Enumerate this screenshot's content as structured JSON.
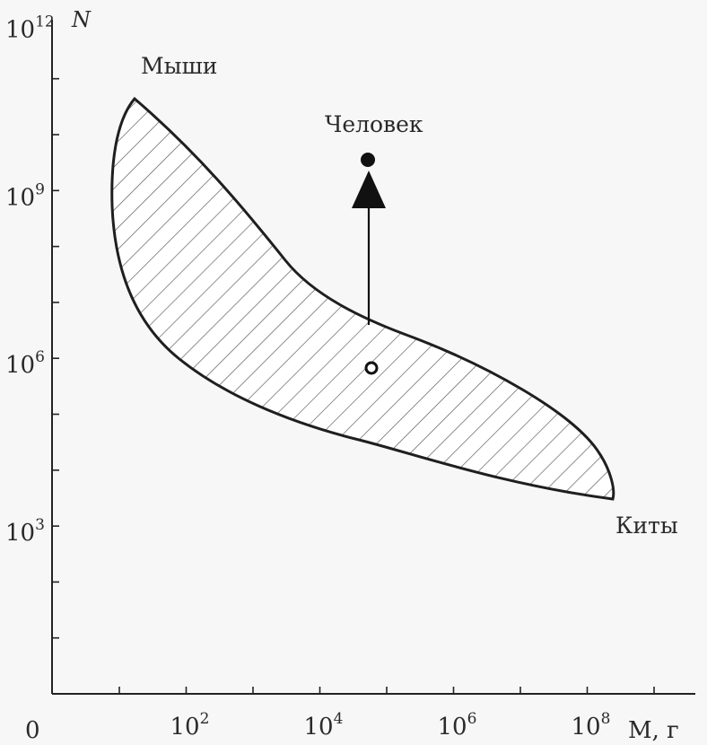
{
  "chart_data": {
    "type": "area",
    "x_scale": "log",
    "y_scale": "log",
    "xlabel": "M, г",
    "ylabel": "N",
    "x_origin_label": "0",
    "x_ticks": [
      {
        "value": 100,
        "base": "10",
        "exp": "2"
      },
      {
        "value": 10000,
        "base": "10",
        "exp": "4"
      },
      {
        "value": 1000000,
        "base": "10",
        "exp": "6"
      },
      {
        "value": 100000000,
        "base": "10",
        "exp": "8"
      }
    ],
    "y_ticks": [
      {
        "value": 1000,
        "base": "10",
        "exp": "3"
      },
      {
        "value": 1000000,
        "base": "10",
        "exp": "6"
      },
      {
        "value": 1000000000,
        "base": "10",
        "exp": "9"
      },
      {
        "value": 1000000000000,
        "base": "10",
        "exp": "12"
      }
    ],
    "region": {
      "description_points_upper": [
        [
          13,
          25000000000
        ],
        [
          40,
          4000000000
        ],
        [
          1000,
          60000000
        ],
        [
          100000,
          5000000
        ],
        [
          10000000,
          200000
        ],
        [
          200000000,
          5000
        ]
      ],
      "description_points_lower": [
        [
          6,
          2000000000
        ],
        [
          10,
          80000000
        ],
        [
          100,
          3000000
        ],
        [
          10000,
          100000
        ],
        [
          1000000,
          20000
        ],
        [
          200000000,
          3000
        ]
      ]
    },
    "annotations": [
      {
        "label": "Мыши",
        "x": 13,
        "y": 25000000000
      },
      {
        "label": "Человек",
        "x": 50000,
        "y": 5000000000
      },
      {
        "label": "Киты",
        "x": 200000000,
        "y": 3000
      }
    ],
    "points": [
      {
        "name": "human-point",
        "x": 50000,
        "y": 5000000000,
        "style": "filled"
      },
      {
        "name": "expected-point",
        "x": 50000,
        "y": 1000000,
        "style": "open"
      }
    ],
    "arrow": {
      "from": [
        50000,
        5000000
      ],
      "to": [
        50000,
        1000000000
      ]
    },
    "grid": false,
    "xlim": [
      1,
      1000000000
    ],
    "ylim": [
      1,
      1000000000000
    ]
  }
}
